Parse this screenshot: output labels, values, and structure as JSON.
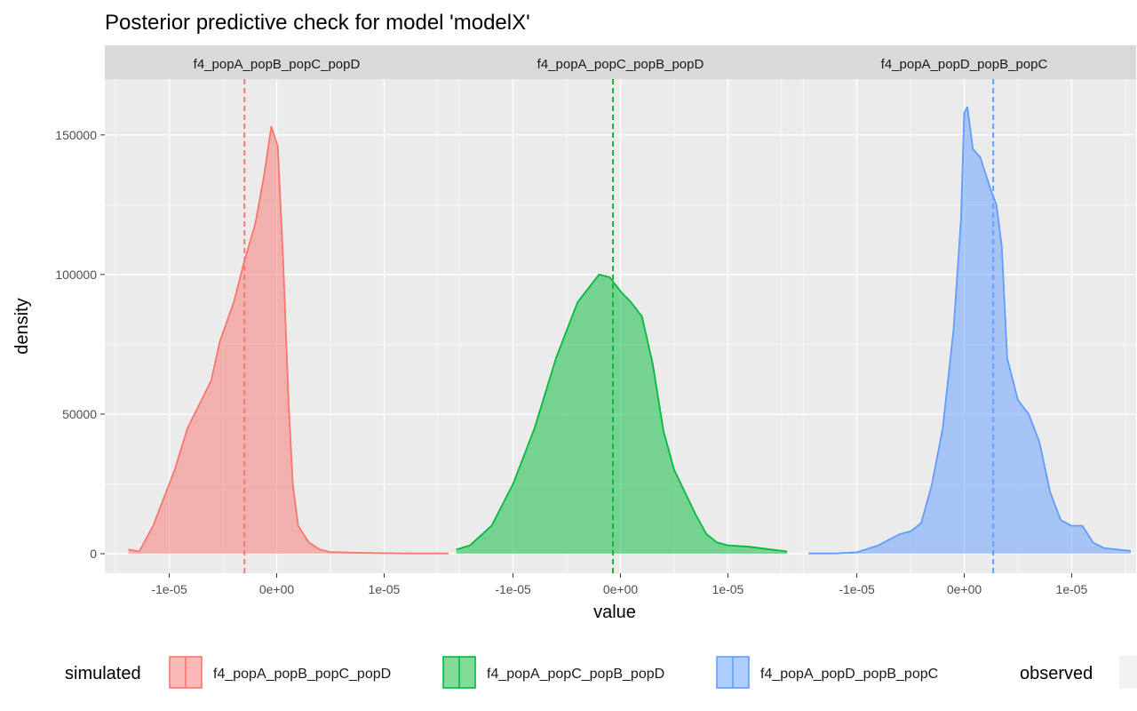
{
  "chart_data": {
    "type": "area",
    "title": "Posterior predictive check for model 'modelX'",
    "xlabel": "value",
    "ylabel": "density",
    "xlim": [
      -1.6e-05,
      1.6e-05
    ],
    "ylim": [
      -7000,
      170000
    ],
    "x_ticks": [
      -1e-05,
      0,
      1e-05
    ],
    "x_tick_labels": [
      "-1e-05",
      "0e+00",
      "1e-05"
    ],
    "y_ticks": [
      0,
      50000,
      100000,
      150000
    ],
    "y_tick_labels": [
      "0",
      "50000",
      "100000",
      "150000"
    ],
    "grid": true,
    "legend_position": "bottom",
    "legend": {
      "simulated_title": "simulated",
      "observed_title": "observed",
      "entries": [
        "f4_popA_popB_popC_popD",
        "f4_popA_popC_popB_popD",
        "f4_popA_popD_popB_popC"
      ]
    },
    "series": [
      {
        "name": "f4_popA_popB_popC_popD",
        "color": "#F8766D",
        "observed": -3e-06,
        "x": [
          -1.38e-05,
          -1.28e-05,
          -1.15e-05,
          -9.5e-06,
          -8.3e-06,
          -7e-06,
          -6.1e-06,
          -5.3e-06,
          -4e-06,
          -3e-06,
          -2e-06,
          -1.2e-06,
          -5e-07,
          1e-07,
          6e-07,
          1.1e-06,
          1.5e-06,
          2e-06,
          3e-06,
          4e-06,
          5e-06,
          6e-06,
          8e-06,
          1e-05,
          1.2e-05,
          1.4e-05,
          1.65e-05
        ],
        "y": [
          1500,
          800,
          10000,
          30000,
          45000,
          55000,
          62000,
          76000,
          90000,
          105000,
          118000,
          135000,
          153000,
          146000,
          105000,
          55000,
          25000,
          10000,
          4000,
          1500,
          600,
          500,
          300,
          200,
          100,
          100,
          100
        ]
      },
      {
        "name": "f4_popA_popC_popB_popD",
        "color": "#00BA38",
        "observed": -7e-07,
        "x": [
          -1.53e-05,
          -1.4e-05,
          -1.2e-05,
          -1e-05,
          -8e-06,
          -6e-06,
          -4e-06,
          -2e-06,
          -1e-06,
          0.0,
          1e-06,
          2e-06,
          3e-06,
          4e-06,
          5e-06,
          6e-06,
          7e-06,
          8e-06,
          9e-06,
          1e-05,
          1.2e-05,
          1.4e-05,
          1.55e-05
        ],
        "y": [
          1500,
          3000,
          10000,
          25000,
          45000,
          70000,
          90000,
          100000,
          99000,
          94000,
          90000,
          85000,
          68000,
          44000,
          30000,
          22000,
          14000,
          7000,
          4000,
          3000,
          2500,
          1500,
          800
        ]
      },
      {
        "name": "f4_popA_popD_popB_popC",
        "color": "#619CFF",
        "observed": 2.7e-06,
        "x": [
          -1.45e-05,
          -1.2e-05,
          -1e-05,
          -8e-06,
          -6e-06,
          -5e-06,
          -4e-06,
          -3e-06,
          -2e-06,
          -1e-06,
          -3e-07,
          0.0,
          3e-07,
          8e-07,
          1.5e-06,
          2.5e-06,
          3e-06,
          3.5e-06,
          4e-06,
          5e-06,
          6e-06,
          7e-06,
          8e-06,
          9e-06,
          1e-05,
          1.1e-05,
          1.2e-05,
          1.3e-05,
          1.55e-05
        ],
        "y": [
          100,
          100,
          500,
          3000,
          7000,
          8000,
          11000,
          25000,
          45000,
          80000,
          120000,
          158000,
          160000,
          145000,
          142000,
          130000,
          125000,
          110000,
          70000,
          55000,
          50000,
          40000,
          22000,
          12000,
          10000,
          10000,
          4000,
          2000,
          1000
        ]
      }
    ]
  }
}
